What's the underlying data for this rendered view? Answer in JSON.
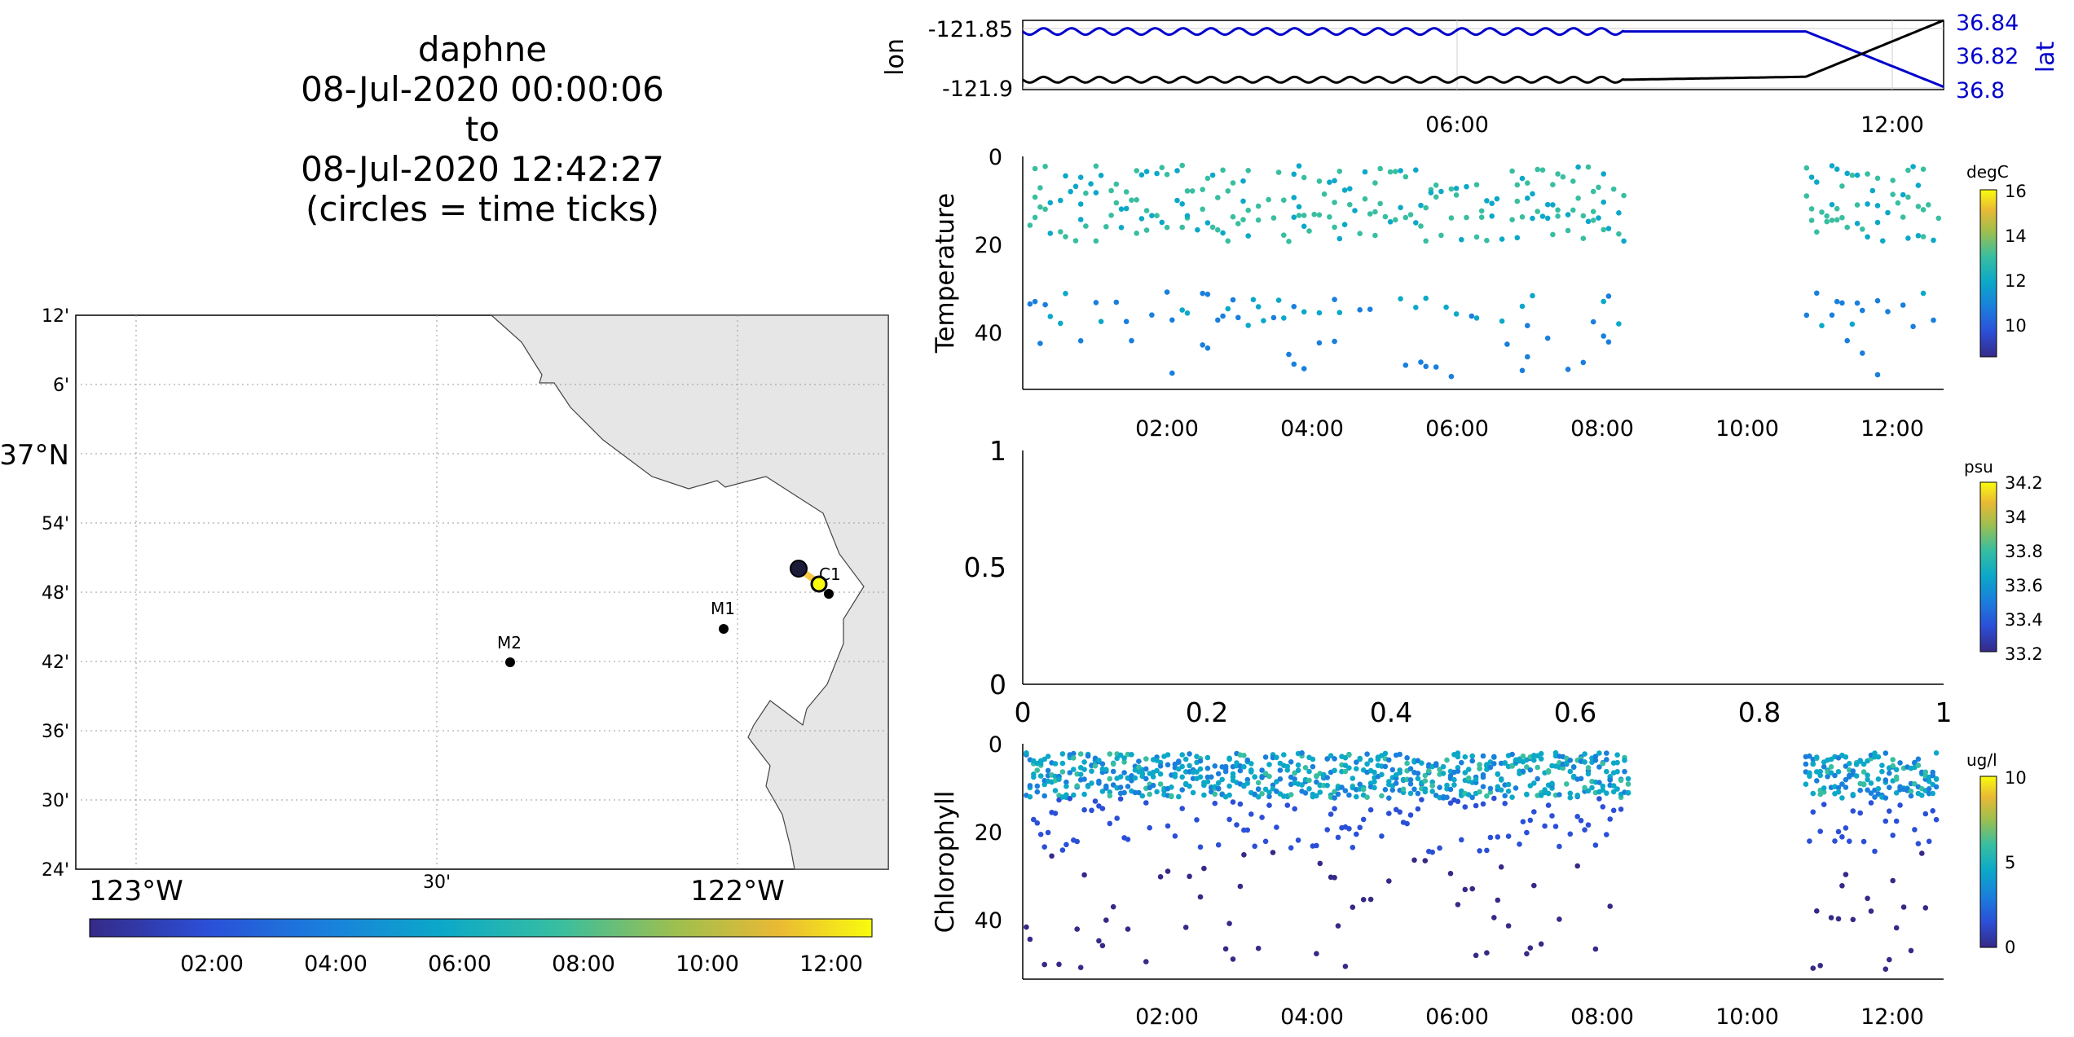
{
  "header": {
    "title": "daphne",
    "line2": "08-Jul-2020 00:00:06",
    "line3": "to",
    "line4": "08-Jul-2020 12:42:27",
    "line5": "(circles = time ticks)"
  },
  "colors": {
    "lon_line": "#000000",
    "lat_line": "#0000cc",
    "land": "#e6e6e6",
    "track": "#f7c948",
    "grid": "#b0b0b0"
  },
  "map": {
    "lat_ticks": [
      "12'",
      "6'",
      "37°N",
      "54'",
      "48'",
      "42'",
      "36'",
      "30'",
      "24'"
    ],
    "lon_ticks": [
      "123°W",
      "30'",
      "122°W"
    ],
    "stations": [
      {
        "name": "M2",
        "lon": -122.39,
        "lat": 36.7
      },
      {
        "name": "M1",
        "lon": -122.03,
        "lat": 36.75
      },
      {
        "name": "C1",
        "lon": -121.9,
        "lat": 36.8
      }
    ],
    "colorbar_ticks": [
      "02:00",
      "04:00",
      "06:00",
      "08:00",
      "10:00",
      "12:00"
    ]
  },
  "chart_data": [
    {
      "type": "line",
      "ylabel_left": "lon",
      "ylabel_right": "lat",
      "x_ticks": [
        "06:00",
        "12:00"
      ],
      "y_left_ticks": [
        "-121.85",
        "-121.9"
      ],
      "y_right_ticks": [
        "36.84",
        "36.82",
        "36.8"
      ],
      "y_left_range": [
        -121.91,
        -121.84
      ],
      "y_right_range": [
        36.795,
        36.845
      ],
      "series": [
        {
          "name": "lon",
          "values": [
            [
              0.0,
              -121.9
            ],
            [
              8.3,
              -121.9
            ],
            [
              10.8,
              -121.897
            ],
            [
              12.7,
              -121.84
            ]
          ]
        },
        {
          "name": "lat",
          "values": [
            [
              0.0,
              36.837
            ],
            [
              8.3,
              36.837
            ],
            [
              10.8,
              36.837
            ],
            [
              12.7,
              36.797
            ]
          ]
        }
      ]
    },
    {
      "type": "scatter",
      "ylabel": "Temperature",
      "y_ticks": [
        "0",
        "20",
        "40"
      ],
      "x_ticks": [
        "02:00",
        "04:00",
        "06:00",
        "08:00",
        "10:00",
        "12:00"
      ],
      "colorbar": {
        "unit": "degC",
        "ticks": [
          "16",
          "14",
          "12",
          "10"
        ],
        "range": [
          8.5,
          16
        ]
      }
    },
    {
      "type": "scatter",
      "ylabel": "",
      "y_ticks": [
        "1",
        "0.5",
        "0"
      ],
      "x_ticks": [
        "0",
        "0.2",
        "0.4",
        "0.6",
        "0.8",
        "1"
      ],
      "colorbar": {
        "unit": "psu",
        "ticks": [
          "34.2",
          "34",
          "33.8",
          "33.6",
          "33.4",
          "33.2"
        ],
        "range": [
          33.15,
          34.2
        ]
      }
    },
    {
      "type": "scatter",
      "ylabel": "Chlorophyll",
      "y_ticks": [
        "0",
        "20",
        "40"
      ],
      "x_ticks": [
        "02:00",
        "04:00",
        "06:00",
        "08:00",
        "10:00",
        "12:00"
      ],
      "colorbar": {
        "unit": "ug/l",
        "ticks": [
          "10",
          "5",
          "0"
        ],
        "range": [
          0,
          10
        ]
      }
    }
  ]
}
